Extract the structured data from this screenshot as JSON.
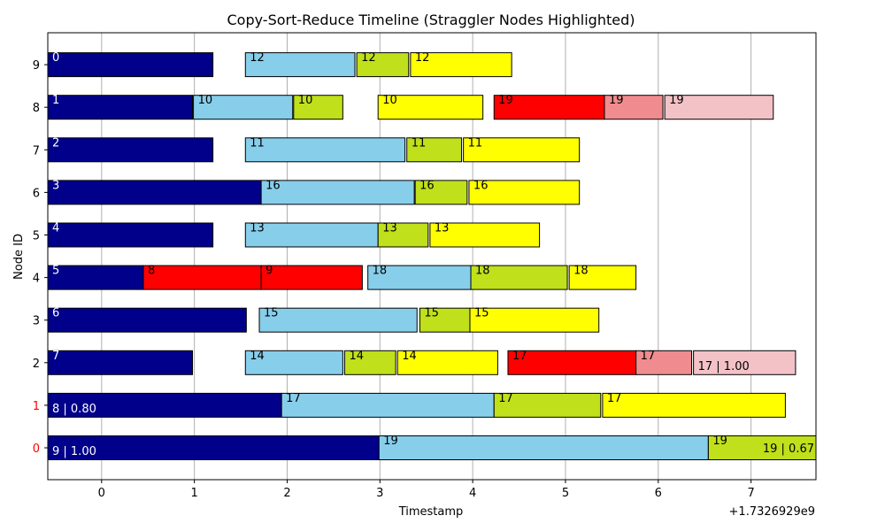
{
  "chart_data": {
    "type": "gantt",
    "title": "Copy-Sort-Reduce Timeline (Straggler Nodes Highlighted)",
    "xlabel": "Timestamp",
    "ylabel": "Node ID",
    "x_offset_label": "+1.7326929e9",
    "xlim": [
      -0.58,
      7.7
    ],
    "x_ticks": [
      0,
      1,
      2,
      3,
      4,
      5,
      6,
      7
    ],
    "y_ticks": [
      0,
      1,
      2,
      3,
      4,
      5,
      6,
      7,
      8,
      9
    ],
    "red_ticks": [
      0,
      1
    ],
    "grid": "x",
    "colors": {
      "map": "#00008b",
      "copy": "#87ceeb",
      "sort": "#bfe01a",
      "reduce": "#ffff00",
      "straggler_copy": "#ff0000",
      "straggler_sort": "#f08c8f",
      "straggler_reduce": "#f3c2c7"
    },
    "tasks": [
      {
        "node": 9,
        "start": -0.58,
        "end": 1.2,
        "kind": "map",
        "label": "0"
      },
      {
        "node": 9,
        "start": 1.55,
        "end": 2.73,
        "kind": "copy",
        "label": "12"
      },
      {
        "node": 9,
        "start": 2.75,
        "end": 3.31,
        "kind": "sort",
        "label": "12"
      },
      {
        "node": 9,
        "start": 3.33,
        "end": 4.42,
        "kind": "reduce",
        "label": "12"
      },
      {
        "node": 8,
        "start": -0.58,
        "end": 0.98,
        "kind": "map",
        "label": "1"
      },
      {
        "node": 8,
        "start": 0.99,
        "end": 2.06,
        "kind": "copy",
        "label": "10"
      },
      {
        "node": 8,
        "start": 2.07,
        "end": 2.6,
        "kind": "sort",
        "label": "10"
      },
      {
        "node": 8,
        "start": 2.98,
        "end": 4.11,
        "kind": "reduce",
        "label": "10"
      },
      {
        "node": 8,
        "start": 4.23,
        "end": 5.42,
        "kind": "straggler_copy",
        "label": "19"
      },
      {
        "node": 8,
        "start": 5.42,
        "end": 6.05,
        "kind": "straggler_sort",
        "label": "19"
      },
      {
        "node": 8,
        "start": 6.07,
        "end": 7.24,
        "kind": "straggler_reduce",
        "label": "19"
      },
      {
        "node": 7,
        "start": -0.58,
        "end": 1.2,
        "kind": "map",
        "label": "2"
      },
      {
        "node": 7,
        "start": 1.55,
        "end": 3.27,
        "kind": "copy",
        "label": "11"
      },
      {
        "node": 7,
        "start": 3.29,
        "end": 3.88,
        "kind": "sort",
        "label": "11"
      },
      {
        "node": 7,
        "start": 3.9,
        "end": 5.15,
        "kind": "reduce",
        "label": "11"
      },
      {
        "node": 6,
        "start": -0.58,
        "end": 1.72,
        "kind": "map",
        "label": "3"
      },
      {
        "node": 6,
        "start": 1.72,
        "end": 3.37,
        "kind": "copy",
        "label": "16"
      },
      {
        "node": 6,
        "start": 3.38,
        "end": 3.94,
        "kind": "sort",
        "label": "16"
      },
      {
        "node": 6,
        "start": 3.96,
        "end": 5.15,
        "kind": "reduce",
        "label": "16"
      },
      {
        "node": 5,
        "start": -0.58,
        "end": 1.2,
        "kind": "map",
        "label": "4"
      },
      {
        "node": 5,
        "start": 1.55,
        "end": 2.98,
        "kind": "copy",
        "label": "13"
      },
      {
        "node": 5,
        "start": 2.98,
        "end": 3.52,
        "kind": "sort",
        "label": "13"
      },
      {
        "node": 5,
        "start": 3.54,
        "end": 4.72,
        "kind": "reduce",
        "label": "13"
      },
      {
        "node": 4,
        "start": -0.58,
        "end": 0.45,
        "kind": "map",
        "label": "5"
      },
      {
        "node": 4,
        "start": 0.45,
        "end": 1.72,
        "kind": "straggler_copy",
        "label": "8"
      },
      {
        "node": 4,
        "start": 1.72,
        "end": 2.81,
        "kind": "straggler_copy",
        "label": "9"
      },
      {
        "node": 4,
        "start": 2.87,
        "end": 3.98,
        "kind": "copy",
        "label": "18"
      },
      {
        "node": 4,
        "start": 3.98,
        "end": 5.02,
        "kind": "sort",
        "label": "18"
      },
      {
        "node": 4,
        "start": 5.04,
        "end": 5.76,
        "kind": "reduce",
        "label": "18"
      },
      {
        "node": 3,
        "start": -0.58,
        "end": 1.56,
        "kind": "map",
        "label": "6"
      },
      {
        "node": 3,
        "start": 1.7,
        "end": 3.4,
        "kind": "copy",
        "label": "15"
      },
      {
        "node": 3,
        "start": 3.43,
        "end": 3.97,
        "kind": "sort",
        "label": "15"
      },
      {
        "node": 3,
        "start": 3.97,
        "end": 5.36,
        "kind": "reduce",
        "label": "15"
      },
      {
        "node": 2,
        "start": -0.58,
        "end": 0.98,
        "kind": "map",
        "label": "7"
      },
      {
        "node": 2,
        "start": 1.55,
        "end": 2.6,
        "kind": "copy",
        "label": "14"
      },
      {
        "node": 2,
        "start": 2.62,
        "end": 3.17,
        "kind": "sort",
        "label": "14"
      },
      {
        "node": 2,
        "start": 3.19,
        "end": 4.27,
        "kind": "reduce",
        "label": "14"
      },
      {
        "node": 2,
        "start": 4.38,
        "end": 5.76,
        "kind": "straggler_copy",
        "label": "17"
      },
      {
        "node": 2,
        "start": 5.76,
        "end": 6.36,
        "kind": "straggler_sort",
        "label": "17"
      },
      {
        "node": 2,
        "start": 6.38,
        "end": 7.48,
        "kind": "straggler_reduce",
        "label": "17 | 1.00"
      },
      {
        "node": 1,
        "start": -0.58,
        "end": 1.94,
        "kind": "map",
        "label": "8 | 0.80"
      },
      {
        "node": 1,
        "start": 1.94,
        "end": 4.23,
        "kind": "copy",
        "label": "17"
      },
      {
        "node": 1,
        "start": 4.23,
        "end": 5.38,
        "kind": "sort",
        "label": "17"
      },
      {
        "node": 1,
        "start": 5.4,
        "end": 7.37,
        "kind": "reduce",
        "label": "17"
      },
      {
        "node": 0,
        "start": -0.58,
        "end": 2.99,
        "kind": "map",
        "label": "9 | 1.00"
      },
      {
        "node": 0,
        "start": 2.99,
        "end": 6.54,
        "kind": "copy",
        "label": "19"
      },
      {
        "node": 0,
        "start": 6.54,
        "end": 7.72,
        "kind": "sort",
        "label": "19"
      },
      {
        "node": 0,
        "start": 6.54,
        "end": 7.72,
        "kind": "sort",
        "label": "19 | 0.67"
      }
    ]
  }
}
